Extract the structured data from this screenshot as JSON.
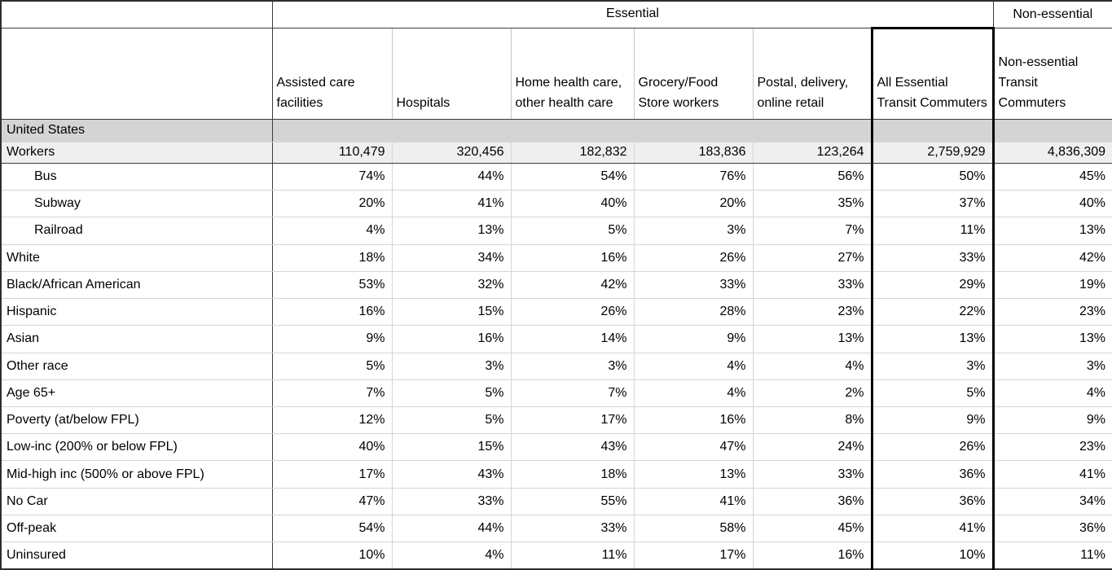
{
  "chart_data": {
    "type": "table",
    "group_headers": [
      {
        "label": "",
        "colspan": 1
      },
      {
        "label": "Essential",
        "colspan": 6
      },
      {
        "label": "Non-essential",
        "colspan": 1
      }
    ],
    "columns": [
      "Assisted care facilities",
      "Hospitals",
      "Home health care, other health care",
      "Grocery/Food Store workers",
      "Postal, delivery, online retail",
      "All Essential Transit Commuters",
      "Non-essential Transit Commuters"
    ],
    "highlight_column": "All Essential Transit Commuters",
    "region_label": "United States",
    "workers_row": {
      "label": "Workers",
      "values": [
        "110,479",
        "320,456",
        "182,832",
        "183,836",
        "123,264",
        "2,759,929",
        "4,836,309"
      ]
    },
    "rows": [
      {
        "label": "Bus",
        "indent": true,
        "top_border": "dark",
        "values": [
          "74%",
          "44%",
          "54%",
          "76%",
          "56%",
          "50%",
          "45%"
        ]
      },
      {
        "label": "Subway",
        "indent": true,
        "top_border": "light",
        "values": [
          "20%",
          "41%",
          "40%",
          "20%",
          "35%",
          "37%",
          "40%"
        ]
      },
      {
        "label": "Railroad",
        "indent": true,
        "top_border": "light",
        "values": [
          "4%",
          "13%",
          "5%",
          "3%",
          "7%",
          "11%",
          "13%"
        ]
      },
      {
        "label": "White",
        "indent": false,
        "top_border": "dark",
        "values": [
          "18%",
          "34%",
          "16%",
          "26%",
          "27%",
          "33%",
          "42%"
        ]
      },
      {
        "label": "Black/African American",
        "indent": false,
        "top_border": "light",
        "values": [
          "53%",
          "32%",
          "42%",
          "33%",
          "33%",
          "29%",
          "19%"
        ]
      },
      {
        "label": "Hispanic",
        "indent": false,
        "top_border": "light",
        "values": [
          "16%",
          "15%",
          "26%",
          "28%",
          "23%",
          "22%",
          "23%"
        ]
      },
      {
        "label": "Asian",
        "indent": false,
        "top_border": "light",
        "values": [
          "9%",
          "16%",
          "14%",
          "9%",
          "13%",
          "13%",
          "13%"
        ]
      },
      {
        "label": "Other race",
        "indent": false,
        "top_border": "light",
        "values": [
          "5%",
          "3%",
          "3%",
          "4%",
          "4%",
          "3%",
          "3%"
        ]
      },
      {
        "label": "Age 65+",
        "indent": false,
        "top_border": "dark",
        "values": [
          "7%",
          "5%",
          "7%",
          "4%",
          "2%",
          "5%",
          "4%"
        ]
      },
      {
        "label": "Poverty (at/below FPL)",
        "indent": false,
        "top_border": "dark",
        "values": [
          "12%",
          "5%",
          "17%",
          "16%",
          "8%",
          "9%",
          "9%"
        ]
      },
      {
        "label": "Low-inc (200% or below FPL)",
        "indent": false,
        "top_border": "light",
        "values": [
          "40%",
          "15%",
          "43%",
          "47%",
          "24%",
          "26%",
          "23%"
        ]
      },
      {
        "label": "Mid-high inc (500% or above FPL)",
        "indent": false,
        "top_border": "light",
        "values": [
          "17%",
          "43%",
          "18%",
          "13%",
          "33%",
          "36%",
          "41%"
        ]
      },
      {
        "label": "No Car",
        "indent": false,
        "top_border": "dark",
        "values": [
          "47%",
          "33%",
          "55%",
          "41%",
          "36%",
          "36%",
          "34%"
        ]
      },
      {
        "label": "Off-peak",
        "indent": false,
        "top_border": "light",
        "values": [
          "54%",
          "44%",
          "33%",
          "58%",
          "45%",
          "41%",
          "36%"
        ]
      },
      {
        "label": "Uninsured",
        "indent": false,
        "top_border": "light",
        "values": [
          "10%",
          "4%",
          "11%",
          "17%",
          "16%",
          "10%",
          "11%"
        ]
      }
    ],
    "colors": {
      "region_row_bg": "#d4d4d4",
      "workers_row_bg": "#efefef",
      "dark_border": "#3c3c3c",
      "light_border": "#d5d5d5",
      "highlight_box_border": "#000000"
    }
  }
}
